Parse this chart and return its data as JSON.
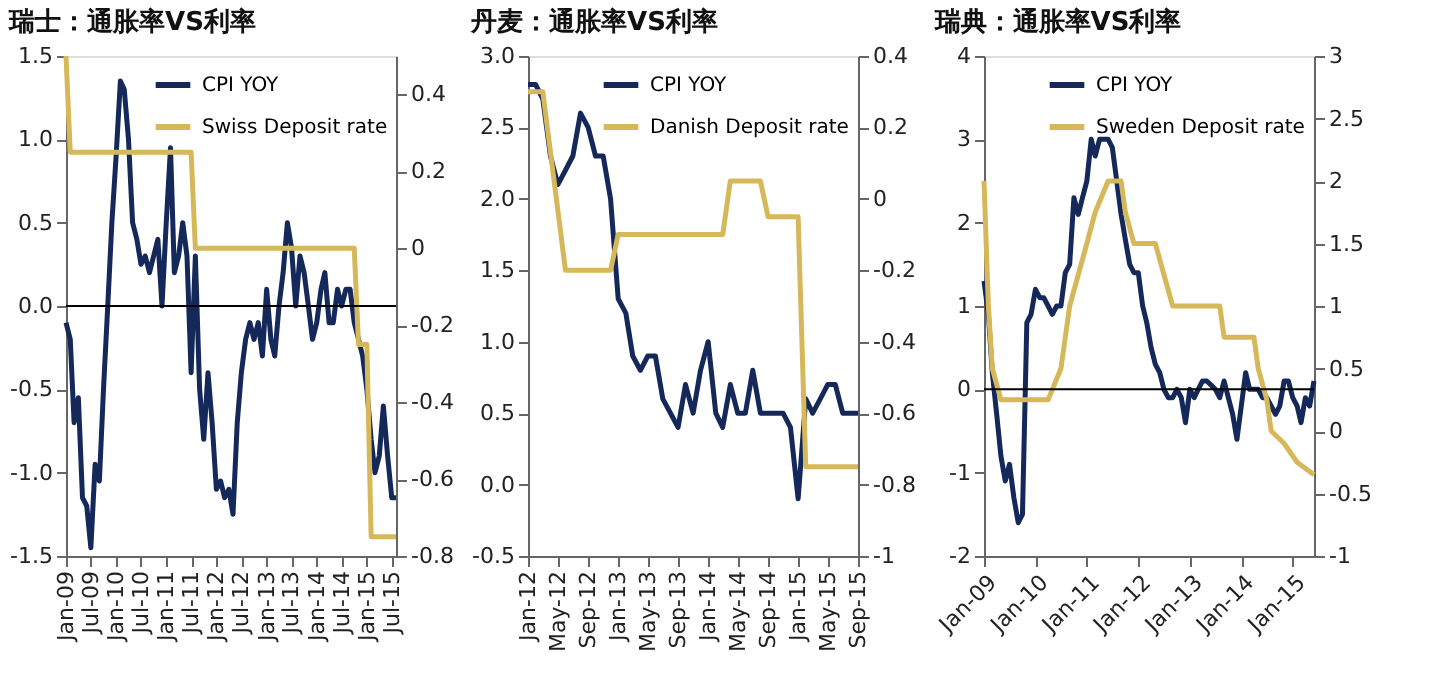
{
  "chart_data": [
    {
      "type": "line",
      "title": "瑞士：通胀率VS利率",
      "legend": "top right",
      "x": [
        "2009-01",
        "2009-02",
        "2009-03",
        "2009-04",
        "2009-05",
        "2009-06",
        "2009-07",
        "2009-08",
        "2009-09",
        "2009-10",
        "2009-11",
        "2009-12",
        "2010-01",
        "2010-02",
        "2010-03",
        "2010-04",
        "2010-05",
        "2010-06",
        "2010-07",
        "2010-08",
        "2010-09",
        "2010-10",
        "2010-11",
        "2010-12",
        "2011-01",
        "2011-02",
        "2011-03",
        "2011-04",
        "2011-05",
        "2011-06",
        "2011-07",
        "2011-08",
        "2011-09",
        "2011-10",
        "2011-11",
        "2011-12",
        "2012-01",
        "2012-02",
        "2012-03",
        "2012-04",
        "2012-05",
        "2012-06",
        "2012-07",
        "2012-08",
        "2012-09",
        "2012-10",
        "2012-11",
        "2012-12",
        "2013-01",
        "2013-02",
        "2013-03",
        "2013-04",
        "2013-05",
        "2013-06",
        "2013-07",
        "2013-08",
        "2013-09",
        "2013-10",
        "2013-11",
        "2013-12",
        "2014-01",
        "2014-02",
        "2014-03",
        "2014-04",
        "2014-05",
        "2014-06",
        "2014-07",
        "2014-08",
        "2014-09",
        "2014-10",
        "2014-11",
        "2014-12",
        "2015-01",
        "2015-02",
        "2015-03",
        "2015-04",
        "2015-05",
        "2015-06",
        "2015-07",
        "2015-08"
      ],
      "series": [
        {
          "name": "CPI YOY",
          "color": "#14285a",
          "values": [
            -0.1,
            -0.2,
            -0.7,
            -0.55,
            -1.15,
            -1.2,
            -1.45,
            -0.95,
            -1.05,
            -0.5,
            0.0,
            0.5,
            0.9,
            1.35,
            1.3,
            1.0,
            0.5,
            0.4,
            0.25,
            0.3,
            0.2,
            0.3,
            0.4,
            0.0,
            0.5,
            0.95,
            0.2,
            0.3,
            0.5,
            0.3,
            -0.4,
            0.3,
            -0.5,
            -0.8,
            -0.4,
            -0.7,
            -1.1,
            -1.05,
            -1.15,
            -1.1,
            -1.25,
            -0.7,
            -0.4,
            -0.2,
            -0.1,
            -0.2,
            -0.1,
            -0.3,
            0.1,
            -0.2,
            -0.3,
            0.0,
            0.2,
            0.5,
            0.35,
            0.0,
            0.3,
            0.2,
            0.0,
            -0.2,
            -0.1,
            0.1,
            0.2,
            -0.1,
            -0.1,
            0.1,
            0.0,
            0.1,
            0.1,
            -0.1,
            -0.2,
            -0.3,
            -0.5,
            -0.8,
            -1.0,
            -0.9,
            -0.6,
            -0.9,
            -1.15,
            -1.15
          ]
        },
        {
          "name": "Swiss Deposit rate",
          "color": "#d6b85a",
          "axis": "y2",
          "x": [
            "2009-01",
            "2009-02",
            "2011-07",
            "2011-08",
            "2014-10",
            "2014-11",
            "2015-01",
            "2015-02",
            "2015-08"
          ],
          "values": [
            0.5,
            0.25,
            0.25,
            0,
            0,
            -0.25,
            -0.25,
            -0.75,
            -0.75
          ]
        }
      ],
      "xlim": [
        "2009-01",
        "2015-08"
      ],
      "xticks": [
        {
          "value": "2009-01",
          "label": "Jan-09"
        },
        {
          "value": "2009-07",
          "label": "Jul-09"
        },
        {
          "value": "2010-01",
          "label": "Jan-10"
        },
        {
          "value": "2010-07",
          "label": "Jul-10"
        },
        {
          "value": "2011-01",
          "label": "Jan-11"
        },
        {
          "value": "2011-07",
          "label": "Jul-11"
        },
        {
          "value": "2012-01",
          "label": "Jan-12"
        },
        {
          "value": "2012-07",
          "label": "Jul-12"
        },
        {
          "value": "2013-01",
          "label": "Jan-13"
        },
        {
          "value": "2013-07",
          "label": "Jul-13"
        },
        {
          "value": "2014-01",
          "label": "Jan-14"
        },
        {
          "value": "2014-07",
          "label": "Jul-14"
        },
        {
          "value": "2015-01",
          "label": "Jan-15"
        },
        {
          "value": "2015-07",
          "label": "Jul-15"
        }
      ],
      "ylim": [
        -1.5,
        1.5
      ],
      "yticks": [
        1.5,
        {
          "value": 1,
          "label": "1.0"
        },
        0.5,
        {
          "value": 0,
          "label": "0.0"
        },
        -0.5,
        {
          "value": -1,
          "label": "-1.0"
        },
        -1.5
      ],
      "y2lim": [
        -0.8,
        0.5
      ],
      "y2ticks": [
        0.4,
        0.2,
        0,
        -0.2,
        -0.4,
        -0.6,
        -0.8
      ],
      "ref_lines": [
        {
          "axis": "y",
          "value": 0,
          "color": "#000000"
        }
      ]
    },
    {
      "type": "line",
      "title": "丹麦：通胀率VS利率",
      "legend": "top right",
      "x": [
        "2012-01",
        "2012-02",
        "2012-03",
        "2012-04",
        "2012-05",
        "2012-06",
        "2012-07",
        "2012-08",
        "2012-09",
        "2012-10",
        "2012-11",
        "2012-12",
        "2013-01",
        "2013-02",
        "2013-03",
        "2013-04",
        "2013-05",
        "2013-06",
        "2013-07",
        "2013-08",
        "2013-09",
        "2013-10",
        "2013-11",
        "2013-12",
        "2014-01",
        "2014-02",
        "2014-03",
        "2014-04",
        "2014-05",
        "2014-06",
        "2014-07",
        "2014-08",
        "2014-09",
        "2014-10",
        "2014-11",
        "2014-12",
        "2015-01",
        "2015-02",
        "2015-03",
        "2015-04",
        "2015-05",
        "2015-06",
        "2015-07",
        "2015-08",
        "2015-09"
      ],
      "series": [
        {
          "name": "CPI YOY",
          "color": "#14285a",
          "values": [
            2.8,
            2.8,
            2.7,
            2.3,
            2.1,
            2.2,
            2.3,
            2.6,
            2.5,
            2.3,
            2.3,
            2.0,
            1.3,
            1.2,
            0.9,
            0.8,
            0.9,
            0.9,
            0.6,
            0.5,
            0.4,
            0.7,
            0.5,
            0.8,
            1.0,
            0.5,
            0.4,
            0.7,
            0.5,
            0.5,
            0.8,
            0.5,
            0.5,
            0.5,
            0.5,
            0.4,
            -0.1,
            0.6,
            0.5,
            0.6,
            0.7,
            0.7,
            0.5,
            0.5,
            0.5
          ]
        },
        {
          "name": "Danish Deposit rate",
          "color": "#d6b85a",
          "axis": "y2",
          "x": [
            "2012-01",
            "2012-03",
            "2012-06",
            "2012-12",
            "2013-01",
            "2014-03",
            "2014-04",
            "2014-08",
            "2014-09",
            "2015-01",
            "2015-02",
            "2015-09"
          ],
          "values": [
            0.3,
            0.3,
            -0.2,
            -0.2,
            -0.1,
            -0.1,
            0.05,
            0.05,
            -0.05,
            -0.05,
            -0.75,
            -0.75
          ]
        }
      ],
      "xlim": [
        "2012-01",
        "2015-09"
      ],
      "xticks": [
        {
          "value": "2012-01",
          "label": "Jan-12"
        },
        {
          "value": "2012-05",
          "label": "May-12"
        },
        {
          "value": "2012-09",
          "label": "Sep-12"
        },
        {
          "value": "2013-01",
          "label": "Jan-13"
        },
        {
          "value": "2013-05",
          "label": "May-13"
        },
        {
          "value": "2013-09",
          "label": "Sep-13"
        },
        {
          "value": "2014-01",
          "label": "Jan-14"
        },
        {
          "value": "2014-05",
          "label": "May-14"
        },
        {
          "value": "2014-09",
          "label": "Sep-14"
        },
        {
          "value": "2015-01",
          "label": "Jan-15"
        },
        {
          "value": "2015-05",
          "label": "May-15"
        },
        {
          "value": "2015-09",
          "label": "Sep-15"
        }
      ],
      "ylim": [
        -0.5,
        3
      ],
      "yticks": [
        {
          "value": 3,
          "label": "3.0"
        },
        2.5,
        {
          "value": 2,
          "label": "2.0"
        },
        1.5,
        {
          "value": 1,
          "label": "1.0"
        },
        0.5,
        {
          "value": 0,
          "label": "0.0"
        },
        -0.5
      ],
      "y2lim": [
        -1,
        0.4
      ],
      "y2ticks": [
        0.4,
        0.2,
        0,
        -0.2,
        -0.4,
        -0.6,
        -0.8,
        -1
      ]
    },
    {
      "type": "line",
      "title": "瑞典：通胀率VS利率",
      "legend": "top right",
      "x": [
        "2009-01",
        "2009-02",
        "2009-03",
        "2009-04",
        "2009-05",
        "2009-06",
        "2009-07",
        "2009-08",
        "2009-09",
        "2009-10",
        "2009-11",
        "2009-12",
        "2010-01",
        "2010-02",
        "2010-03",
        "2010-04",
        "2010-05",
        "2010-06",
        "2010-07",
        "2010-08",
        "2010-09",
        "2010-10",
        "2010-11",
        "2010-12",
        "2011-01",
        "2011-02",
        "2011-03",
        "2011-04",
        "2011-05",
        "2011-06",
        "2011-07",
        "2011-08",
        "2011-09",
        "2011-10",
        "2011-11",
        "2011-12",
        "2012-01",
        "2012-02",
        "2012-03",
        "2012-04",
        "2012-05",
        "2012-06",
        "2012-07",
        "2012-08",
        "2012-09",
        "2012-10",
        "2012-11",
        "2012-12",
        "2013-01",
        "2013-02",
        "2013-03",
        "2013-04",
        "2013-05",
        "2013-06",
        "2013-07",
        "2013-08",
        "2013-09",
        "2013-10",
        "2013-11",
        "2013-12",
        "2014-01",
        "2014-02",
        "2014-03",
        "2014-04",
        "2014-05",
        "2014-06",
        "2014-07",
        "2014-08",
        "2014-09",
        "2014-10",
        "2014-11",
        "2014-12",
        "2015-01",
        "2015-02",
        "2015-03",
        "2015-04",
        "2015-05",
        "2015-06"
      ],
      "series": [
        {
          "name": "CPI YOY",
          "color": "#14285a",
          "values": [
            1.3,
            0.9,
            0.2,
            -0.3,
            -0.8,
            -1.1,
            -0.9,
            -1.3,
            -1.6,
            -1.5,
            0.8,
            0.9,
            1.2,
            1.1,
            1.1,
            1.0,
            0.9,
            1.0,
            1.0,
            1.4,
            1.5,
            2.3,
            2.1,
            2.3,
            2.5,
            3.0,
            2.8,
            3.0,
            3.0,
            3.0,
            2.9,
            2.5,
            2.1,
            1.8,
            1.5,
            1.4,
            1.4,
            1.0,
            0.8,
            0.5,
            0.3,
            0.2,
            0.0,
            -0.1,
            -0.1,
            0.0,
            -0.1,
            -0.4,
            0.0,
            -0.1,
            0.0,
            0.1,
            0.1,
            0.05,
            0.0,
            -0.1,
            0.1,
            -0.1,
            -0.3,
            -0.6,
            -0.2,
            0.2,
            0.0,
            0.0,
            0.0,
            -0.1,
            -0.1,
            -0.2,
            -0.3,
            -0.2,
            0.1,
            0.1,
            -0.1,
            -0.2,
            -0.4,
            -0.1,
            -0.2,
            0.1
          ]
        },
        {
          "name": "Sweden Deposit rate",
          "color": "#d6b85a",
          "axis": "y2",
          "x": [
            "2009-01",
            "2009-02",
            "2009-03",
            "2009-05",
            "2010-04",
            "2010-07",
            "2010-09",
            "2010-11",
            "2011-01",
            "2011-03",
            "2011-06",
            "2011-09",
            "2011-10",
            "2011-12",
            "2012-05",
            "2012-07",
            "2012-09",
            "2013-08",
            "2013-09",
            "2014-04",
            "2014-05",
            "2014-07",
            "2014-08",
            "2014-11",
            "2015-02",
            "2015-06"
          ],
          "values": [
            2.0,
            1.0,
            0.5,
            0.25,
            0.25,
            0.5,
            1.0,
            1.25,
            1.5,
            1.75,
            2.0,
            2.0,
            1.75,
            1.5,
            1.5,
            1.25,
            1.0,
            1.0,
            0.75,
            0.75,
            0.5,
            0.25,
            0.0,
            -0.1,
            -0.25,
            -0.35
          ]
        }
      ],
      "xlim": [
        "2009-01",
        "2015-06"
      ],
      "xticks": [
        {
          "value": "2009-01",
          "label": "Jan-09"
        },
        {
          "value": "2010-01",
          "label": "Jan-10"
        },
        {
          "value": "2011-01",
          "label": "Jan-11"
        },
        {
          "value": "2012-01",
          "label": "Jan-12"
        },
        {
          "value": "2013-01",
          "label": "Jan-13"
        },
        {
          "value": "2014-01",
          "label": "Jan-14"
        },
        {
          "value": "2015-01",
          "label": "Jan-15"
        }
      ],
      "ylim": [
        -2,
        4
      ],
      "yticks": [
        4,
        3,
        2,
        1,
        0,
        -1,
        -2
      ],
      "y2lim": [
        -1,
        3
      ],
      "y2ticks": [
        3,
        2.5,
        2,
        1.5,
        1,
        0.5,
        0,
        -0.5,
        -1
      ],
      "ref_lines": [
        {
          "axis": "y",
          "value": 0,
          "color": "#000000"
        }
      ]
    }
  ]
}
